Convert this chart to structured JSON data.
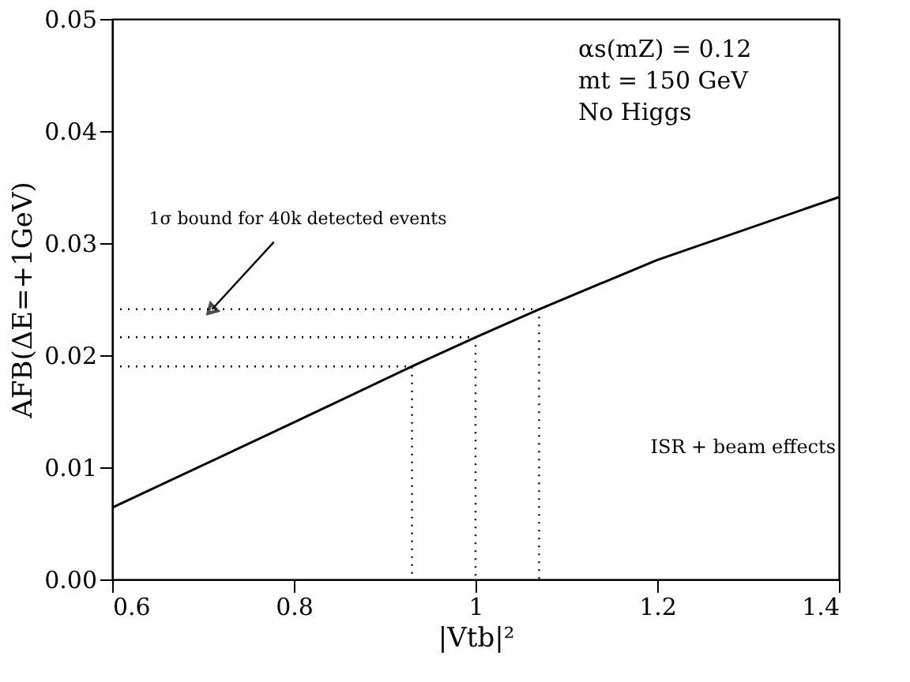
{
  "chart_data": {
    "type": "line",
    "xlabel": "|Vtb|²",
    "ylabel": "AFB(ΔE=+1GeV)",
    "xlim": [
      0.6,
      1.4
    ],
    "ylim": [
      0,
      0.05
    ],
    "xticks": [
      0.6,
      0.8,
      1,
      1.2,
      1.4
    ],
    "yticks": [
      {
        "value": 0,
        "label": "0.00"
      },
      {
        "value": 0.01,
        "label": "0.01"
      },
      {
        "value": 0.02,
        "label": "0.02"
      },
      {
        "value": 0.03,
        "label": "0.03"
      },
      {
        "value": 0.04,
        "label": "0.04"
      },
      {
        "value": 0.05,
        "label": "0.05"
      }
    ],
    "grid": false,
    "series": [
      {
        "color": "#000000",
        "line_style": "solid",
        "x": [
          0.6,
          0.8,
          0.93,
          1.0,
          1.07,
          1.2,
          1.4
        ],
        "values": [
          0.0064,
          0.014,
          0.019,
          0.0216,
          0.0241,
          0.0285,
          0.0341
        ]
      },
      {
        "color": "#000000",
        "line_style": "dotted",
        "x": [
          0.6,
          1.07,
          1.07
        ],
        "values": [
          0.0241,
          0.0241,
          0
        ]
      },
      {
        "color": "#000000",
        "line_style": "dotted",
        "x": [
          0.6,
          1.0,
          1.0
        ],
        "values": [
          0.0216,
          0.0216,
          0
        ]
      },
      {
        "color": "#000000",
        "line_style": "dotted",
        "x": [
          0.6,
          0.93,
          0.93
        ],
        "values": [
          0.019,
          0.019,
          0
        ]
      }
    ],
    "annotations": [
      "αs(mZ) = 0.12",
      "mt = 150 GeV",
      "No Higgs",
      {
        "text": "1σ bound for 40k detected events",
        "x": 0.71,
        "y": 0.0241
      },
      "ISR + beam effects"
    ]
  }
}
